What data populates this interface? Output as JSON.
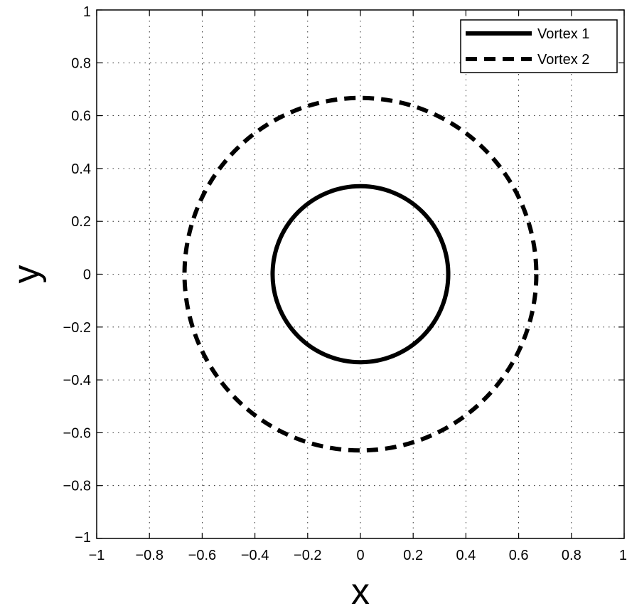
{
  "chart_data": {
    "type": "line",
    "xlabel": "x",
    "ylabel": "y",
    "xlim": [
      -1,
      1
    ],
    "ylim": [
      -1,
      1
    ],
    "xticks": [
      -1,
      -0.8,
      -0.6,
      -0.4,
      -0.2,
      0,
      0.2,
      0.4,
      0.6,
      0.8,
      1
    ],
    "yticks": [
      -1,
      -0.8,
      -0.6,
      -0.4,
      -0.2,
      0,
      0.2,
      0.4,
      0.6,
      0.8,
      1
    ],
    "xtick_labels": [
      "−1",
      "−0.8",
      "−0.6",
      "−0.4",
      "−0.2",
      "0",
      "0.2",
      "0.4",
      "0.6",
      "0.8",
      "1"
    ],
    "ytick_labels": [
      "−1",
      "−0.8",
      "−0.6",
      "−0.4",
      "−0.2",
      "0",
      "0.2",
      "0.4",
      "0.6",
      "0.8",
      "1"
    ],
    "grid": true,
    "legend_position": "top-right",
    "series": [
      {
        "name": "Vortex 1",
        "shape": "circle",
        "center": [
          0,
          0
        ],
        "radius": 0.333,
        "style": "solid",
        "color": "#000000"
      },
      {
        "name": "Vortex 2",
        "shape": "circle",
        "center": [
          0,
          0
        ],
        "radius": 0.667,
        "style": "dashed",
        "color": "#000000"
      }
    ]
  }
}
